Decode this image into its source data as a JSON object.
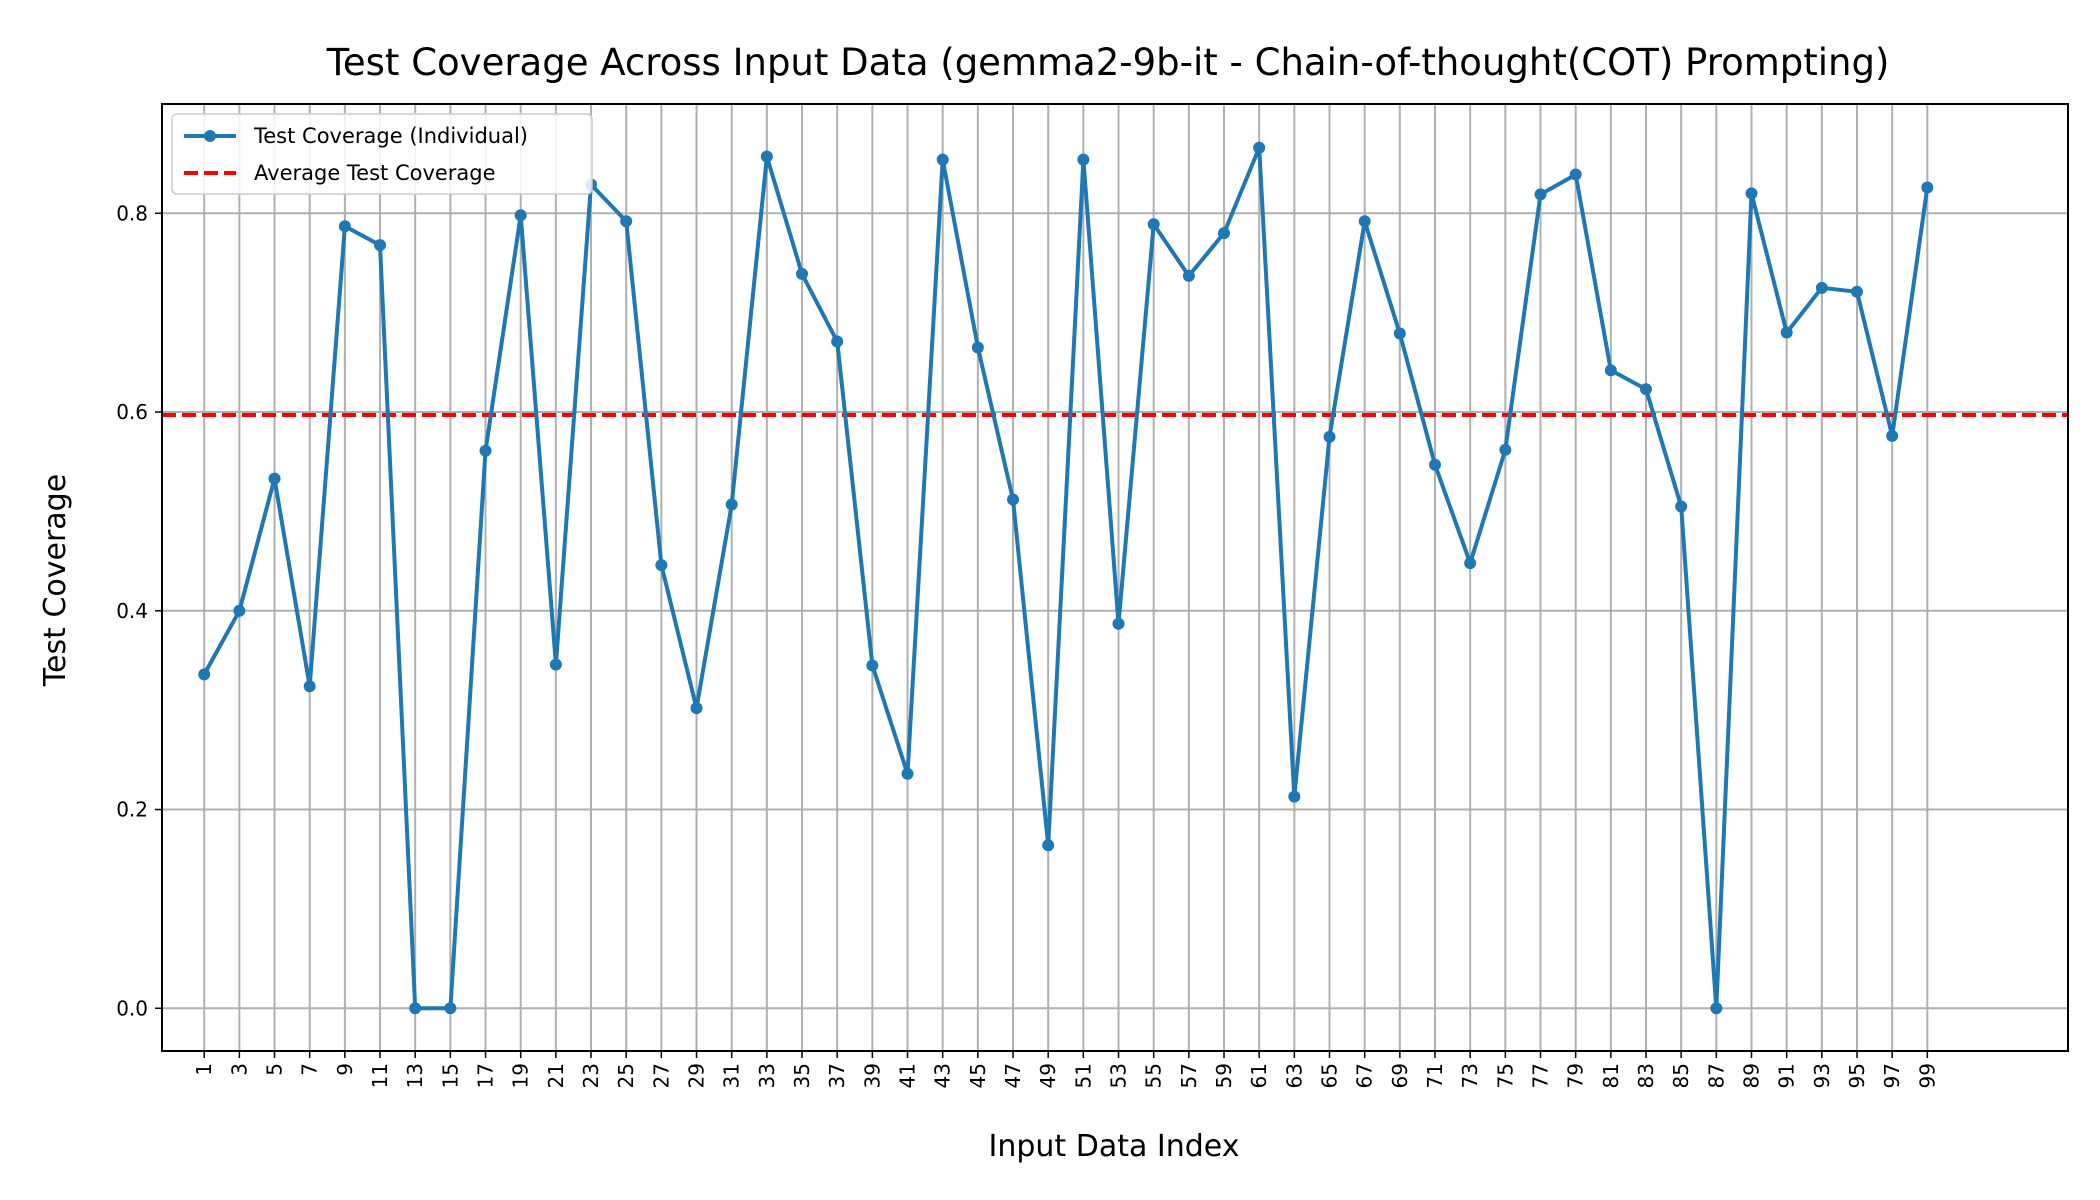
{
  "chart_data": {
    "type": "line",
    "title": "Test Coverage Across Input Data (gemma2-9b-it - Chain-of-thought(COT) Prompting)",
    "xlabel": "Input Data Index",
    "ylabel": "Test Coverage",
    "x": [
      1,
      3,
      5,
      7,
      9,
      11,
      13,
      15,
      17,
      19,
      21,
      23,
      25,
      27,
      29,
      31,
      33,
      35,
      37,
      39,
      41,
      43,
      45,
      47,
      49,
      51,
      53,
      55,
      57,
      59,
      61,
      63,
      65,
      67,
      69,
      71,
      73,
      75,
      77,
      79,
      81,
      83,
      85,
      87,
      89,
      91,
      93,
      95,
      97,
      99
    ],
    "xticks": [
      "1",
      "3",
      "5",
      "7",
      "9",
      "11",
      "13",
      "15",
      "17",
      "19",
      "21",
      "23",
      "25",
      "27",
      "29",
      "31",
      "33",
      "35",
      "37",
      "39",
      "41",
      "43",
      "45",
      "47",
      "49",
      "51",
      "53",
      "55",
      "57",
      "59",
      "61",
      "63",
      "65",
      "67",
      "69",
      "71",
      "73",
      "75",
      "77",
      "79",
      "81",
      "83",
      "85",
      "87",
      "89",
      "91",
      "93",
      "95",
      "97",
      "99"
    ],
    "yticks": [
      "0.0",
      "0.2",
      "0.4",
      "0.6",
      "0.8"
    ],
    "ytick_values": [
      0,
      0.2,
      0.4,
      0.6,
      0.8
    ],
    "xlim": [
      -1.4,
      107
    ],
    "ylim": [
      -0.043,
      0.91
    ],
    "grid": true,
    "legend_position": "upper left",
    "series": [
      {
        "name": "Test Coverage (Individual)",
        "color": "#1f77b4",
        "style": "solid-with-markers",
        "values": [
          0.336,
          0.4,
          0.533,
          0.324,
          0.787,
          0.768,
          0.0,
          0.0,
          0.561,
          0.798,
          0.346,
          0.829,
          0.792,
          0.446,
          0.302,
          0.507,
          0.857,
          0.739,
          0.671,
          0.345,
          0.236,
          0.854,
          0.665,
          0.512,
          0.164,
          0.854,
          0.387,
          0.789,
          0.737,
          0.78,
          0.866,
          0.213,
          0.575,
          0.792,
          0.679,
          0.547,
          0.448,
          0.562,
          0.819,
          0.839,
          0.642,
          0.623,
          0.505,
          0.0,
          0.82,
          0.68,
          0.725,
          0.721,
          0.576,
          0.826
        ]
      }
    ],
    "reference_line": {
      "name": "Average Test Coverage",
      "value": 0.597,
      "color": "#ff0000",
      "style": "dashed"
    }
  }
}
